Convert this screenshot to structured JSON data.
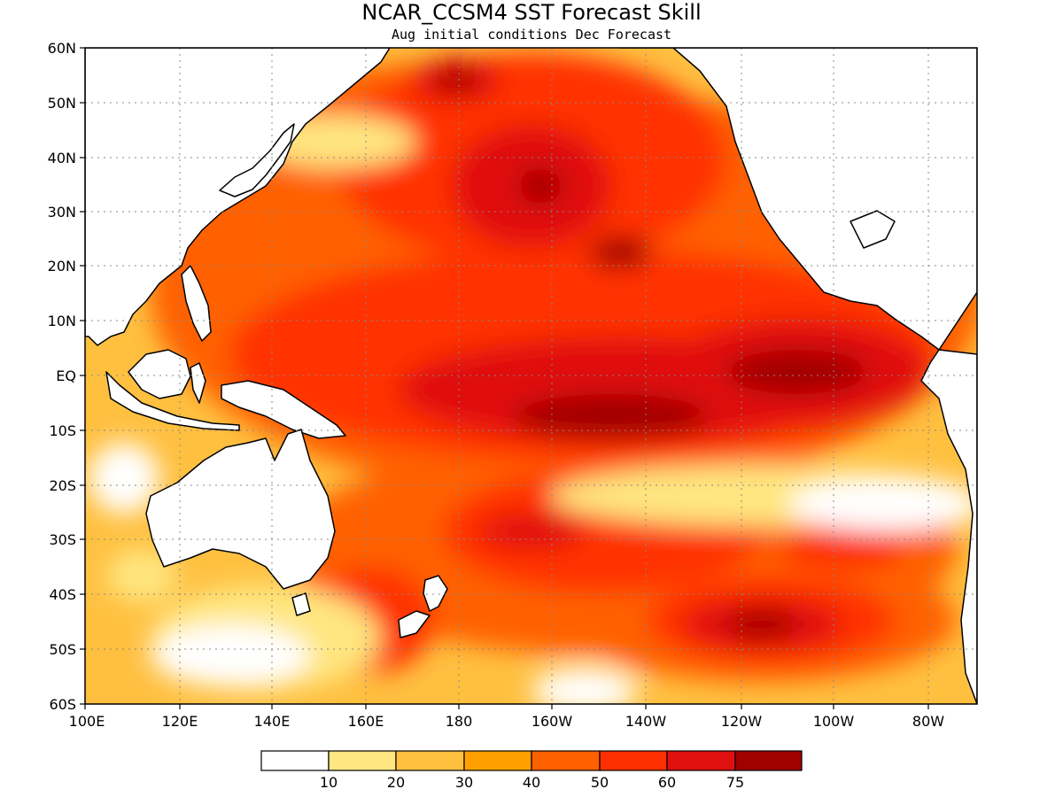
{
  "title": "NCAR_CCSM4 SST Forecast Skill",
  "subtitle": "Aug initial conditions  Dec Forecast",
  "lat_ticks": [
    "60N",
    "50N",
    "40N",
    "30N",
    "20N",
    "10N",
    "EQ",
    "10S",
    "20S",
    "30S",
    "40S",
    "50S",
    "60S"
  ],
  "lon_ticks": [
    "100E",
    "120E",
    "140E",
    "160E",
    "180",
    "160W",
    "140W",
    "120W",
    "100W",
    "80W"
  ],
  "colorbar": {
    "colors": [
      "#ffffff",
      "#ffe680",
      "#ffc040",
      "#ffa000",
      "#ff6000",
      "#ff3000",
      "#e01010",
      "#a00000"
    ],
    "labels": [
      "10",
      "20",
      "30",
      "40",
      "50",
      "60",
      "75"
    ]
  },
  "map": {
    "lat_range": [
      -60,
      60
    ],
    "lon_range": [
      100,
      290
    ],
    "ocean_base_color": "#ffc040",
    "land_color": "#ffffff",
    "coastline_color": "#000000"
  }
}
